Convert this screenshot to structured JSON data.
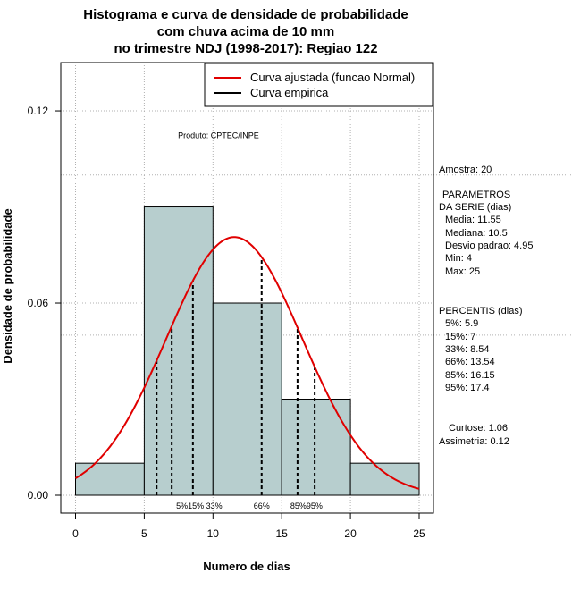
{
  "chart_data": {
    "type": "bar",
    "title_lines": [
      "Histograma e curva de densidade de probabilidade",
      "com chuva acima de 10 mm",
      "no trimestre NDJ (1998-2017): Regiao 122"
    ],
    "xlabel": "Numero de dias",
    "ylabel": "Densidade de probabilidade",
    "xlim": [
      -1,
      26.5
    ],
    "ylim": [
      -0.005,
      0.135
    ],
    "x_ticks": [
      0,
      5,
      10,
      15,
      20,
      25
    ],
    "x_tick_labels": [
      "0",
      "5",
      "10",
      "15",
      "20",
      "25"
    ],
    "y_ticks": [
      0.0,
      0.06,
      0.12
    ],
    "y_tick_labels": [
      "0.00",
      "0.06",
      "0.12"
    ],
    "bins": [
      {
        "from": 0,
        "to": 5,
        "density": 0.01
      },
      {
        "from": 5,
        "to": 10,
        "density": 0.09
      },
      {
        "from": 10,
        "to": 15,
        "density": 0.06
      },
      {
        "from": 15,
        "to": 20,
        "density": 0.03
      },
      {
        "from": 20,
        "to": 25,
        "density": 0.01
      }
    ],
    "normal_curve": {
      "name": "Curva ajustada (funcao Normal)",
      "mean": 11.55,
      "sd": 4.95,
      "x_range": [
        0,
        25
      ],
      "color": "#e00000"
    },
    "empirical": {
      "name": "Curva empirica",
      "color": "#000000"
    },
    "bar_fill": "#b7cece",
    "grid": true,
    "legend_position": "top-right",
    "percentile_lines": [
      {
        "label": "5%",
        "x": 5.9
      },
      {
        "label": "15%",
        "x": 7
      },
      {
        "label": "33%",
        "x": 8.54
      },
      {
        "label": "66%",
        "x": 13.54
      },
      {
        "label": "85%",
        "x": 16.15
      },
      {
        "label": "95%",
        "x": 17.4
      }
    ],
    "percentile_label_groups": [
      {
        "text": "5%15% 33%",
        "x": 9.0
      },
      {
        "text": "66%",
        "x": 13.54
      },
      {
        "text": "85%95%",
        "x": 16.8
      }
    ],
    "annotation": "Produto: CPTEC/INPE",
    "annotation_pos": {
      "x": 10.4,
      "y": 0.1115
    },
    "grid_y": [
      0.1,
      0.05
    ]
  },
  "stats_panel": {
    "lines": [
      "Amostra: 20",
      "PARAMETROS",
      "DA SERIE (dias)",
      "Media: 11.55",
      "Mediana: 10.5",
      "Desvio padrao: 4.95",
      "Min: 4",
      "Max: 25",
      "PERCENTIS (dias)",
      "5%: 5.9",
      "15%: 7",
      "33%: 8.54",
      "66%: 13.54",
      "85%: 16.15",
      "95%: 17.4",
      "Curtose: 1.06",
      "Assimetria: 0.12"
    ]
  }
}
